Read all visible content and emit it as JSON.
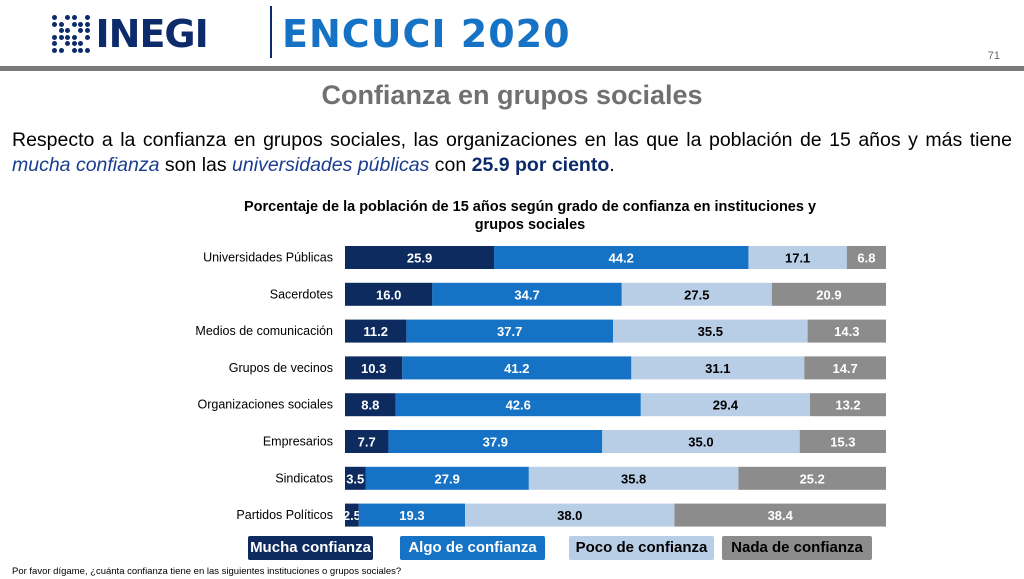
{
  "header": {
    "logo_text": "INEGI",
    "title": "ENCUCI 2020",
    "page_number": "71"
  },
  "slide_title": "Confianza en grupos sociales",
  "intro": {
    "part1": "Respecto a la confianza en grupos sociales, las organizaciones en las que la población de 15 años y más tiene ",
    "emph1": "mucha confianza",
    "part2": " son las ",
    "emph2": "universidades públicas",
    "part3": " con ",
    "strong": "25.9 por ciento",
    "part4": "."
  },
  "colors": {
    "mucha": "#0d2b5e",
    "algo": "#1572c4",
    "poco": "#b8cde6",
    "nada": "#8c8c8c"
  },
  "chart_data": {
    "type": "bar",
    "orientation": "horizontal",
    "stacked": true,
    "title": "Porcentaje de la población de 15 años según grado de confianza en instituciones y grupos sociales",
    "categories": [
      "Universidades Públicas",
      "Sacerdotes",
      "Medios de comunicación",
      "Grupos de vecinos",
      "Organizaciones sociales",
      "Empresarios",
      "Sindicatos",
      "Partidos Políticos"
    ],
    "series": [
      {
        "name": "Mucha confianza",
        "values": [
          25.9,
          16.0,
          11.2,
          10.3,
          8.8,
          7.7,
          3.5,
          2.5
        ]
      },
      {
        "name": "Algo de confianza",
        "values": [
          44.2,
          34.7,
          37.7,
          41.2,
          42.6,
          37.9,
          27.9,
          19.3
        ]
      },
      {
        "name": "Poco de confianza",
        "values": [
          17.1,
          27.5,
          35.5,
          31.1,
          29.4,
          35.0,
          35.8,
          38.0
        ]
      },
      {
        "name": "Nada de confianza",
        "values": [
          6.8,
          20.9,
          14.3,
          14.7,
          13.2,
          15.3,
          25.2,
          38.4
        ]
      }
    ],
    "legend_position": "bottom",
    "grid": false
  },
  "footnote": "Por favor dígame, ¿cuánta confianza tiene en las siguientes instituciones o grupos sociales?"
}
